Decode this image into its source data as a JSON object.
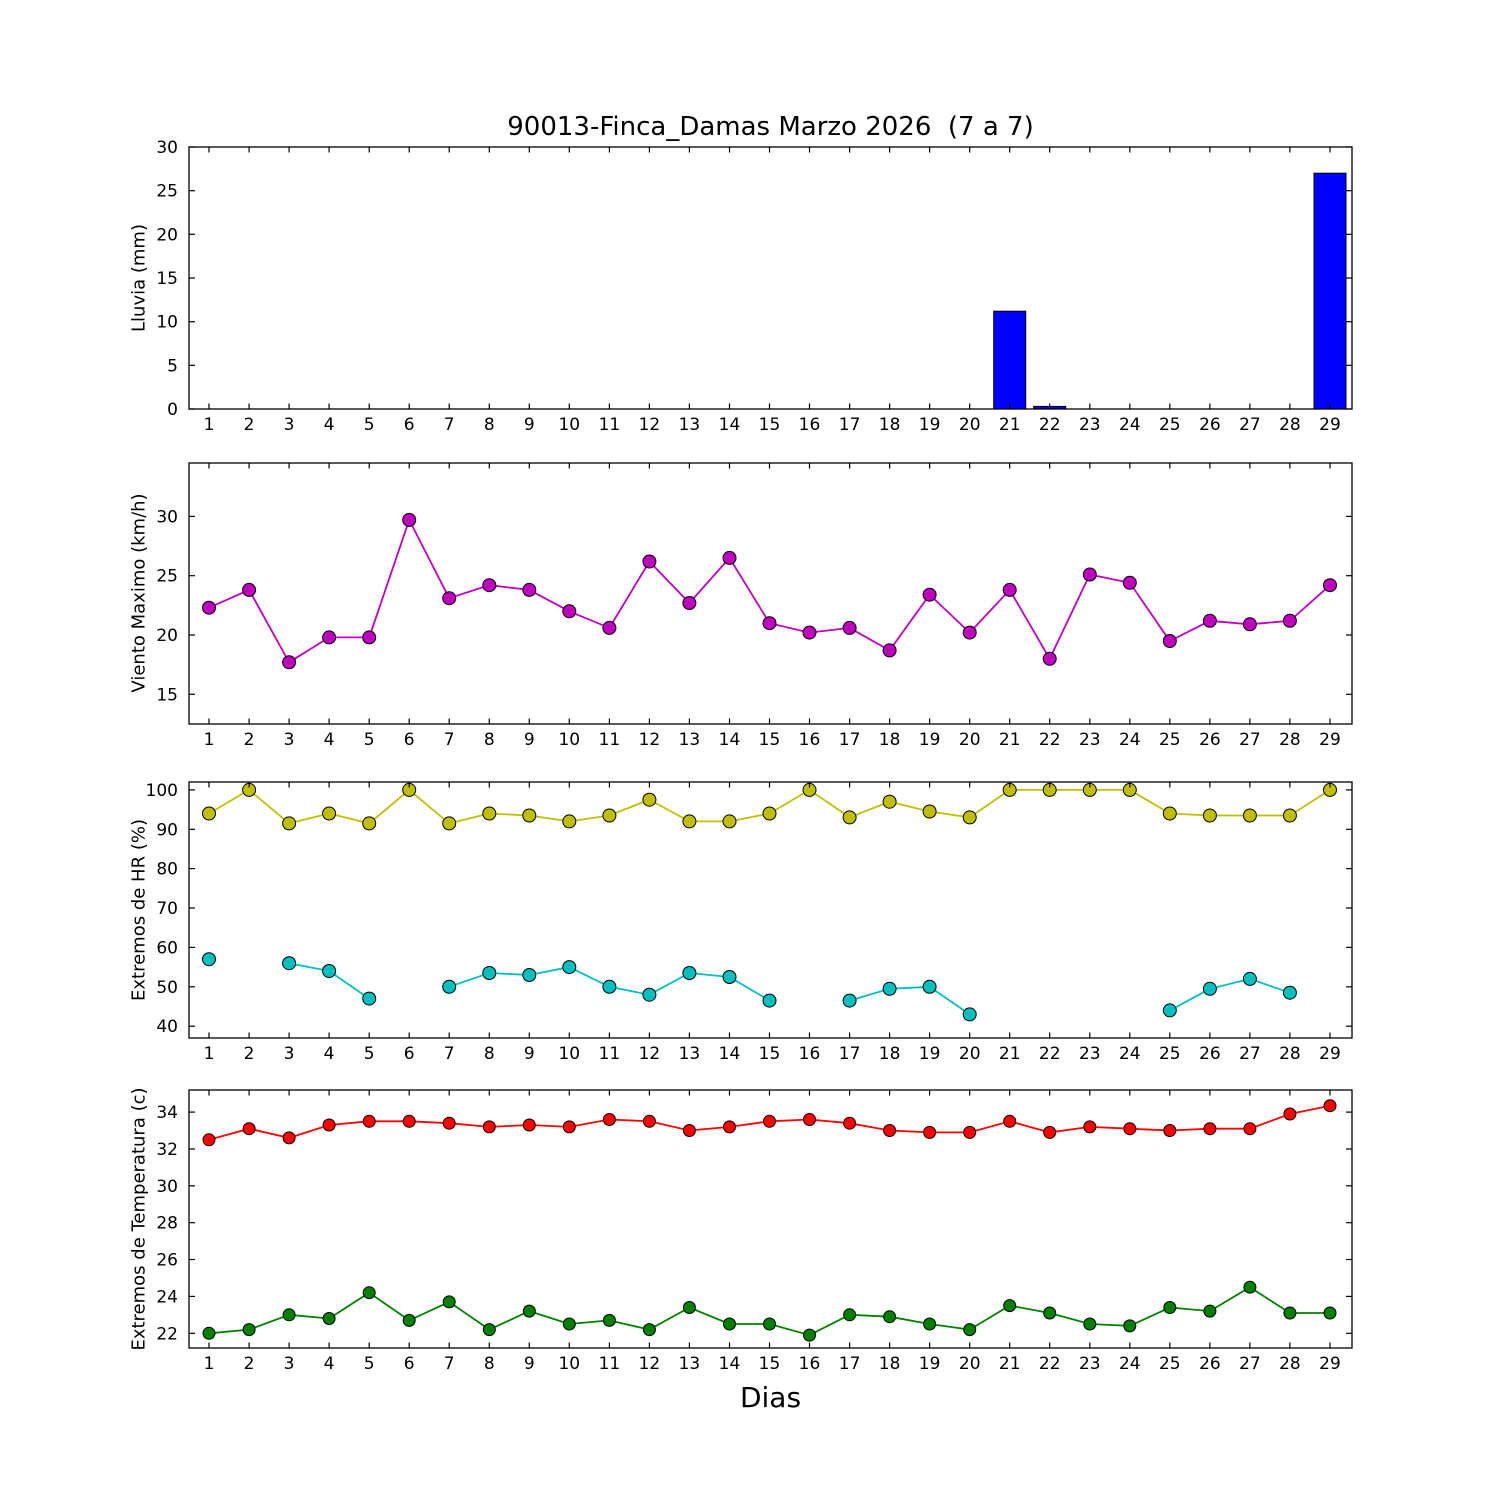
{
  "title": "90013-Finca_Damas Marzo 2026  (7 a 7)",
  "xlabel": "Dias",
  "days": [
    1,
    2,
    3,
    4,
    5,
    6,
    7,
    8,
    9,
    10,
    11,
    12,
    13,
    14,
    15,
    16,
    17,
    18,
    19,
    20,
    21,
    22,
    23,
    24,
    25,
    26,
    27,
    28,
    29
  ],
  "colors": {
    "rain": "#0000ff",
    "wind": "#bf00bf",
    "hr_max": "#bfbf00",
    "hr_min": "#00bfbf",
    "temp_max": "#ff0000",
    "temp_min": "#008000",
    "frame": "#000000",
    "background": "#ffffff"
  },
  "chart_data": [
    {
      "type": "bar",
      "ylabel": "Lluvia (mm)",
      "categories": [
        1,
        2,
        3,
        4,
        5,
        6,
        7,
        8,
        9,
        10,
        11,
        12,
        13,
        14,
        15,
        16,
        17,
        18,
        19,
        20,
        21,
        22,
        23,
        24,
        25,
        26,
        27,
        28,
        29
      ],
      "values": [
        0,
        0,
        0,
        0,
        0,
        0,
        0,
        0,
        0,
        0,
        0,
        0,
        0,
        0,
        0,
        0,
        0,
        0,
        0,
        0,
        11.2,
        0.3,
        0,
        0,
        0,
        0,
        0,
        0,
        27.0
      ],
      "color": "#0000ff",
      "ylim": [
        0,
        30
      ],
      "yticks": [
        0,
        5,
        10,
        15,
        20,
        25,
        30
      ],
      "grid": false,
      "legend": "none"
    },
    {
      "type": "line",
      "ylabel": "Viento Maximo (km/h)",
      "x": [
        1,
        2,
        3,
        4,
        5,
        6,
        7,
        8,
        9,
        10,
        11,
        12,
        13,
        14,
        15,
        16,
        17,
        18,
        19,
        20,
        21,
        22,
        23,
        24,
        25,
        26,
        27,
        28,
        29
      ],
      "series": [
        {
          "name": "viento-maximo",
          "color": "#bf00bf",
          "values": [
            22.3,
            23.8,
            17.7,
            19.8,
            19.8,
            29.7,
            23.1,
            24.2,
            23.8,
            22.0,
            20.6,
            26.2,
            22.7,
            26.5,
            21.0,
            20.2,
            20.6,
            18.7,
            23.4,
            20.2,
            23.8,
            18.0,
            25.1,
            24.4,
            19.5,
            21.2,
            20.9,
            21.2,
            24.2
          ]
        }
      ],
      "ylim": [
        12.5,
        34.5
      ],
      "yticks": [
        15,
        20,
        25,
        30
      ],
      "grid": false,
      "legend": "none"
    },
    {
      "type": "line",
      "ylabel": "Extremos de HR (%)",
      "x": [
        1,
        2,
        3,
        4,
        5,
        6,
        7,
        8,
        9,
        10,
        11,
        12,
        13,
        14,
        15,
        16,
        17,
        18,
        19,
        20,
        21,
        22,
        23,
        24,
        25,
        26,
        27,
        28,
        29
      ],
      "series": [
        {
          "name": "hr-maxima",
          "color": "#bfbf00",
          "values": [
            94,
            100,
            91.5,
            94,
            91.5,
            100,
            91.5,
            94,
            93.5,
            92,
            93.5,
            97.5,
            92,
            92,
            94,
            100,
            93,
            97,
            94.5,
            93,
            100,
            100,
            100,
            100,
            94,
            93.5,
            93.5,
            93.5,
            100
          ]
        },
        {
          "name": "hr-minima",
          "color": "#00bfbf",
          "values": [
            57,
            null,
            56,
            54,
            47,
            null,
            50,
            53.5,
            53,
            55,
            50,
            48,
            53.5,
            52.5,
            46.5,
            null,
            46.5,
            49.5,
            50,
            43,
            null,
            null,
            null,
            null,
            44,
            49.5,
            52,
            48.5,
            null
          ]
        }
      ],
      "ylim": [
        37,
        102
      ],
      "yticks": [
        40,
        50,
        60,
        70,
        80,
        90,
        100
      ],
      "grid": false,
      "legend": "none"
    },
    {
      "type": "line",
      "ylabel": "Extremos de Temperatura (c)",
      "x": [
        1,
        2,
        3,
        4,
        5,
        6,
        7,
        8,
        9,
        10,
        11,
        12,
        13,
        14,
        15,
        16,
        17,
        18,
        19,
        20,
        21,
        22,
        23,
        24,
        25,
        26,
        27,
        28,
        29
      ],
      "series": [
        {
          "name": "temperatura-maxima",
          "color": "#ff0000",
          "values": [
            32.5,
            33.1,
            32.6,
            33.3,
            33.5,
            33.5,
            33.4,
            33.2,
            33.3,
            33.2,
            33.6,
            33.5,
            33.0,
            33.2,
            33.5,
            33.6,
            33.4,
            33.0,
            32.9,
            32.9,
            33.5,
            32.9,
            33.2,
            33.1,
            33.0,
            33.1,
            33.1,
            33.9,
            34.35
          ]
        },
        {
          "name": "temperatura-minima",
          "color": "#008000",
          "values": [
            22.0,
            22.2,
            23.0,
            22.8,
            24.2,
            22.7,
            23.7,
            22.2,
            23.2,
            22.5,
            22.7,
            22.2,
            23.4,
            22.5,
            22.5,
            21.9,
            23.0,
            22.9,
            22.5,
            22.2,
            23.5,
            23.1,
            22.5,
            22.4,
            23.4,
            23.2,
            24.5,
            23.1,
            23.1
          ]
        }
      ],
      "ylim": [
        21.2,
        35.2
      ],
      "yticks": [
        22,
        24,
        26,
        28,
        30,
        32,
        34
      ],
      "grid": false,
      "legend": "none"
    }
  ]
}
